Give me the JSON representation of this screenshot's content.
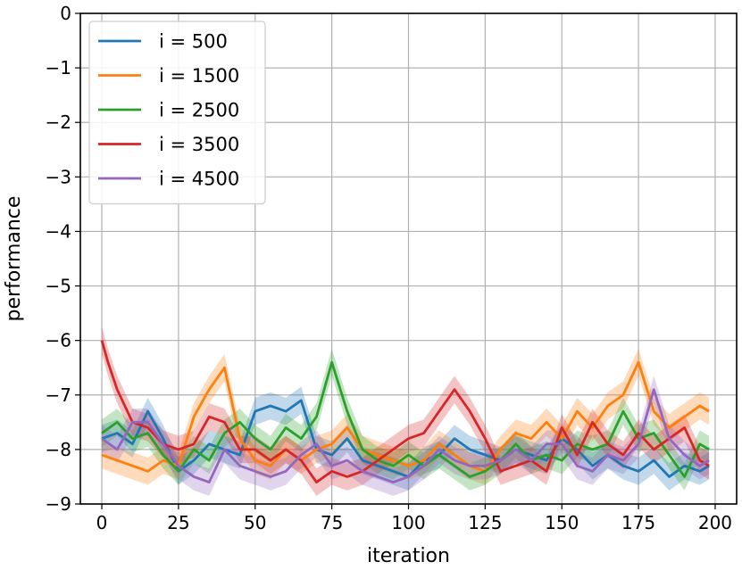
{
  "chart_data": {
    "type": "line",
    "xlabel": "iteration",
    "ylabel": "performance",
    "xlim": [
      -7,
      207
    ],
    "ylim": [
      -9,
      0
    ],
    "xticks": [
      0,
      25,
      50,
      75,
      100,
      125,
      150,
      175,
      200
    ],
    "yticks": [
      0,
      -1,
      -2,
      -3,
      -4,
      -5,
      -6,
      -7,
      -8,
      -9
    ],
    "grid": true,
    "legend": "top-left",
    "band_halfwidth": 0.25,
    "series": [
      {
        "name": "i = 500",
        "color": "#1f77b4",
        "x": [
          0,
          5,
          10,
          15,
          20,
          25,
          30,
          35,
          40,
          45,
          50,
          55,
          60,
          65,
          70,
          75,
          80,
          85,
          90,
          95,
          100,
          105,
          110,
          115,
          120,
          125,
          130,
          135,
          140,
          145,
          150,
          155,
          160,
          165,
          170,
          175,
          180,
          185,
          190,
          195,
          198
        ],
        "y": [
          -7.8,
          -7.7,
          -7.9,
          -7.3,
          -7.8,
          -8.4,
          -8.2,
          -7.9,
          -8.0,
          -8.1,
          -7.3,
          -7.2,
          -7.3,
          -7.1,
          -8.0,
          -8.1,
          -7.8,
          -8.2,
          -8.3,
          -8.4,
          -8.5,
          -8.2,
          -8.1,
          -7.8,
          -8.0,
          -8.1,
          -8.2,
          -8.0,
          -8.1,
          -8.2,
          -7.8,
          -8.0,
          -8.3,
          -8.1,
          -8.3,
          -8.4,
          -8.2,
          -8.5,
          -8.3,
          -8.4,
          -8.3
        ]
      },
      {
        "name": "i = 1500",
        "color": "#ff7f0e",
        "x": [
          0,
          5,
          10,
          15,
          20,
          25,
          30,
          35,
          40,
          45,
          50,
          55,
          60,
          65,
          70,
          75,
          80,
          85,
          90,
          95,
          100,
          105,
          110,
          115,
          120,
          125,
          130,
          135,
          140,
          145,
          150,
          155,
          160,
          165,
          170,
          175,
          180,
          185,
          190,
          195,
          198
        ],
        "y": [
          -8.1,
          -8.2,
          -8.3,
          -8.4,
          -8.2,
          -8.3,
          -7.4,
          -6.9,
          -6.5,
          -7.8,
          -8.2,
          -8.3,
          -8.0,
          -8.2,
          -8.0,
          -7.9,
          -7.6,
          -8.0,
          -8.1,
          -8.2,
          -8.3,
          -8.2,
          -7.9,
          -8.1,
          -8.3,
          -8.4,
          -8.0,
          -7.7,
          -7.8,
          -7.5,
          -7.8,
          -7.3,
          -7.6,
          -7.2,
          -7.0,
          -6.4,
          -7.3,
          -7.6,
          -7.4,
          -7.2,
          -7.3
        ]
      },
      {
        "name": "i = 2500",
        "color": "#2ca02c",
        "x": [
          0,
          5,
          10,
          15,
          20,
          25,
          30,
          35,
          40,
          45,
          50,
          55,
          60,
          65,
          70,
          75,
          80,
          85,
          90,
          95,
          100,
          105,
          110,
          115,
          120,
          125,
          130,
          135,
          140,
          145,
          150,
          155,
          160,
          165,
          170,
          175,
          180,
          185,
          190,
          195,
          198
        ],
        "y": [
          -7.7,
          -7.5,
          -7.8,
          -7.7,
          -8.1,
          -8.4,
          -8.0,
          -8.2,
          -7.7,
          -7.5,
          -7.8,
          -8.0,
          -7.6,
          -7.8,
          -7.4,
          -6.4,
          -7.3,
          -8.0,
          -8.2,
          -8.3,
          -8.1,
          -8.3,
          -8.1,
          -8.3,
          -8.5,
          -8.4,
          -8.2,
          -7.9,
          -8.2,
          -8.1,
          -8.2,
          -7.9,
          -8.0,
          -7.9,
          -7.3,
          -7.8,
          -7.7,
          -8.1,
          -8.5,
          -7.9,
          -8.0
        ]
      },
      {
        "name": "i = 3500",
        "color": "#d62728",
        "x": [
          0,
          2,
          5,
          10,
          15,
          20,
          25,
          30,
          35,
          40,
          45,
          50,
          55,
          60,
          65,
          70,
          75,
          80,
          85,
          90,
          95,
          100,
          105,
          110,
          115,
          120,
          125,
          130,
          135,
          140,
          145,
          150,
          155,
          160,
          165,
          170,
          175,
          180,
          185,
          190,
          195,
          198
        ],
        "y": [
          -6.0,
          -6.4,
          -6.9,
          -7.5,
          -7.6,
          -7.9,
          -8.0,
          -7.9,
          -7.4,
          -7.5,
          -8.0,
          -8.0,
          -8.2,
          -8.0,
          -8.2,
          -8.6,
          -8.4,
          -8.5,
          -8.4,
          -8.2,
          -8.0,
          -7.8,
          -7.7,
          -7.3,
          -6.9,
          -7.3,
          -7.8,
          -8.4,
          -8.3,
          -8.2,
          -8.4,
          -7.6,
          -8.1,
          -7.5,
          -7.9,
          -8.1,
          -7.7,
          -8.0,
          -7.8,
          -7.6,
          -8.2,
          -8.3
        ]
      },
      {
        "name": "i = 4500",
        "color": "#9467bd",
        "x": [
          0,
          5,
          10,
          15,
          20,
          25,
          30,
          35,
          40,
          45,
          50,
          55,
          60,
          65,
          70,
          75,
          80,
          85,
          90,
          95,
          100,
          105,
          110,
          115,
          120,
          125,
          130,
          135,
          140,
          145,
          150,
          155,
          160,
          165,
          170,
          175,
          180,
          185,
          190,
          195,
          198
        ],
        "y": [
          -7.8,
          -8.0,
          -7.5,
          -7.5,
          -7.9,
          -8.3,
          -8.5,
          -8.6,
          -8.0,
          -8.3,
          -8.4,
          -8.5,
          -8.4,
          -8.1,
          -7.9,
          -8.3,
          -8.2,
          -8.4,
          -8.5,
          -8.6,
          -8.5,
          -8.3,
          -8.0,
          -8.2,
          -8.3,
          -8.3,
          -8.2,
          -8.0,
          -8.2,
          -7.9,
          -7.9,
          -8.3,
          -8.4,
          -8.1,
          -8.2,
          -7.9,
          -6.9,
          -7.8,
          -8.1,
          -8.3,
          -8.2
        ]
      }
    ]
  }
}
